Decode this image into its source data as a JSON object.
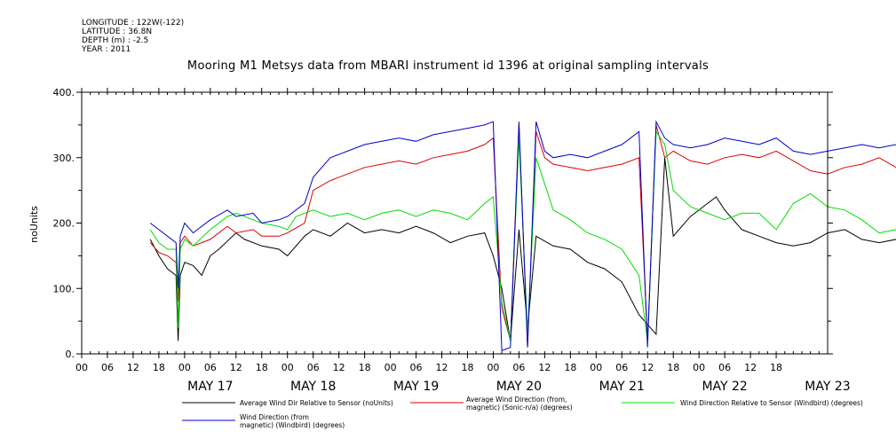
{
  "header": {
    "longitude": "LONGITUDE : 122W(-122)",
    "latitude": "LATITUDE : 36.8N",
    "depth": "DEPTH (m) : -2.5",
    "year": "YEAR : 2011"
  },
  "chart_data": {
    "type": "line",
    "title": "Mooring M1 Metsys data from MBARI instrument id 1396 at original sampling intervals",
    "ylabel": "noUnits",
    "xlabel": "",
    "ylim": [
      0,
      400
    ],
    "yticks": [
      "0.",
      "100.",
      "200.",
      "300.",
      "400."
    ],
    "xlim_hours": [
      -18,
      156
    ],
    "hour_ticks": [
      "00",
      "06",
      "12",
      "18",
      "00",
      "06",
      "12",
      "18",
      "00",
      "06",
      "12",
      "18",
      "00",
      "06",
      "12",
      "18",
      "00",
      "06",
      "12",
      "18",
      "00",
      "06",
      "12",
      "18",
      "00",
      "06",
      "12",
      "18"
    ],
    "day_labels": [
      "MAY 17",
      "MAY 18",
      "MAY 19",
      "MAY 20",
      "MAY 21",
      "MAY 22",
      "MAY 23"
    ],
    "x_unit": "hours since 00 MAY 17, 2011",
    "series": [
      {
        "name": "Average Wind Dir Relative to Sensor (noUnits)",
        "color": "#000000",
        "x": [
          -2,
          0,
          2,
          4,
          4.5,
          5,
          6,
          8,
          10,
          12,
          14,
          18,
          20,
          24,
          28,
          30,
          34,
          36,
          40,
          44,
          48,
          52,
          56,
          60,
          64,
          68,
          72,
          76,
          78,
          80,
          82,
          84,
          86,
          88,
          92,
          96,
          100,
          104,
          108,
          112,
          116,
          118,
          120,
          124,
          128,
          130,
          132,
          136,
          140,
          144,
          148,
          152,
          156,
          160,
          164,
          168,
          172,
          176,
          180,
          184,
          188,
          192,
          196,
          200,
          204,
          206
        ],
        "y": [
          175,
          150,
          130,
          120,
          20,
          120,
          140,
          135,
          120,
          150,
          160,
          185,
          175,
          165,
          160,
          150,
          180,
          190,
          180,
          200,
          185,
          190,
          185,
          195,
          185,
          170,
          180,
          185,
          150,
          100,
          20,
          190,
          40,
          180,
          165,
          160,
          140,
          130,
          110,
          60,
          30,
          300,
          180,
          210,
          230,
          240,
          220,
          190,
          180,
          170,
          165,
          170,
          185,
          190,
          175,
          170,
          175,
          180,
          195,
          210,
          195,
          185,
          180,
          175,
          170,
          170
        ]
      },
      {
        "name": "Average Wind Direction (from, magnetic) (Sonic-n/a) (degrees)",
        "color": "#dd0000",
        "x": [
          -2,
          0,
          2,
          4,
          4.5,
          5,
          6,
          8,
          12,
          16,
          18,
          22,
          24,
          28,
          30,
          34,
          36,
          40,
          44,
          48,
          52,
          56,
          60,
          64,
          68,
          72,
          76,
          78,
          80,
          82,
          84,
          86,
          88,
          90,
          92,
          96,
          100,
          104,
          108,
          112,
          114,
          116,
          118,
          120,
          124,
          128,
          132,
          136,
          140,
          144,
          148,
          152,
          156,
          160,
          164,
          168,
          172,
          176,
          180,
          184,
          188,
          192,
          196,
          200,
          204,
          206
        ],
        "y": [
          170,
          155,
          150,
          140,
          80,
          170,
          180,
          165,
          175,
          195,
          185,
          190,
          180,
          180,
          185,
          200,
          250,
          265,
          275,
          285,
          290,
          295,
          290,
          300,
          305,
          310,
          320,
          330,
          70,
          20,
          350,
          10,
          340,
          300,
          290,
          285,
          280,
          285,
          290,
          300,
          20,
          350,
          300,
          310,
          295,
          290,
          300,
          305,
          300,
          310,
          295,
          280,
          275,
          285,
          290,
          300,
          285,
          290,
          300,
          295,
          290,
          295,
          285,
          290,
          280,
          270
        ]
      },
      {
        "name": "Wind Direction Relative to Sensor (Windbird) (degrees)",
        "color": "#00dd00",
        "x": [
          -2,
          0,
          2,
          4,
          4.5,
          5,
          6,
          8,
          12,
          16,
          18,
          22,
          24,
          28,
          30,
          32,
          36,
          40,
          44,
          48,
          52,
          56,
          60,
          64,
          68,
          72,
          76,
          78,
          80,
          82,
          84,
          86,
          88,
          90,
          92,
          96,
          100,
          104,
          108,
          112,
          114,
          116,
          118,
          120,
          124,
          128,
          132,
          136,
          140,
          144,
          148,
          152,
          156,
          160,
          164,
          168,
          172,
          176,
          180,
          184,
          188,
          192,
          196,
          200,
          204,
          206
        ],
        "y": [
          190,
          170,
          160,
          160,
          40,
          160,
          175,
          165,
          190,
          210,
          215,
          205,
          200,
          195,
          190,
          210,
          220,
          210,
          215,
          205,
          215,
          220,
          210,
          220,
          215,
          205,
          230,
          240,
          80,
          20,
          330,
          30,
          300,
          260,
          220,
          205,
          185,
          175,
          160,
          120,
          20,
          340,
          320,
          250,
          225,
          215,
          205,
          215,
          215,
          190,
          230,
          245,
          225,
          220,
          205,
          185,
          190,
          205,
          215,
          230,
          215,
          220,
          210,
          225,
          215,
          200
        ]
      },
      {
        "name": "Wind Direction (from, magnetic) (Windbird) (degrees)",
        "color": "#0000cc",
        "x": [
          -2,
          0,
          2,
          4,
          4.5,
          5,
          6,
          8,
          12,
          16,
          18,
          22,
          24,
          28,
          30,
          34,
          36,
          40,
          44,
          48,
          52,
          56,
          60,
          64,
          68,
          72,
          76,
          78,
          80,
          82,
          84,
          86,
          88,
          90,
          92,
          96,
          100,
          104,
          108,
          112,
          114,
          116,
          118,
          120,
          124,
          128,
          132,
          136,
          140,
          144,
          148,
          152,
          156,
          160,
          164,
          168,
          172,
          176,
          180,
          184,
          188,
          192,
          196,
          200,
          204,
          206
        ],
        "y": [
          200,
          190,
          180,
          170,
          100,
          180,
          200,
          185,
          205,
          220,
          210,
          215,
          200,
          205,
          210,
          230,
          270,
          300,
          310,
          320,
          325,
          330,
          325,
          335,
          340,
          345,
          350,
          355,
          5,
          10,
          355,
          10,
          355,
          310,
          300,
          305,
          300,
          310,
          320,
          340,
          10,
          355,
          330,
          320,
          315,
          320,
          330,
          325,
          320,
          330,
          310,
          305,
          310,
          315,
          320,
          315,
          320,
          310,
          315,
          320,
          325,
          315,
          315,
          320,
          310,
          295
        ]
      }
    ],
    "legend_placement": "bottom"
  },
  "legend": [
    "Average Wind Dir Relative to Sensor (noUnits)",
    "Average Wind Direction (from,",
    "magnetic) (Sonic-n/a) (degrees)",
    "Wind Direction Relative to Sensor (Windbird) (degrees)",
    "Wind Direction (from",
    "magnetic) (Windbird) (degrees)"
  ],
  "colors": {
    "black": "#000000",
    "red": "#dd0000",
    "green": "#00dd00",
    "blue": "#0000cc"
  }
}
